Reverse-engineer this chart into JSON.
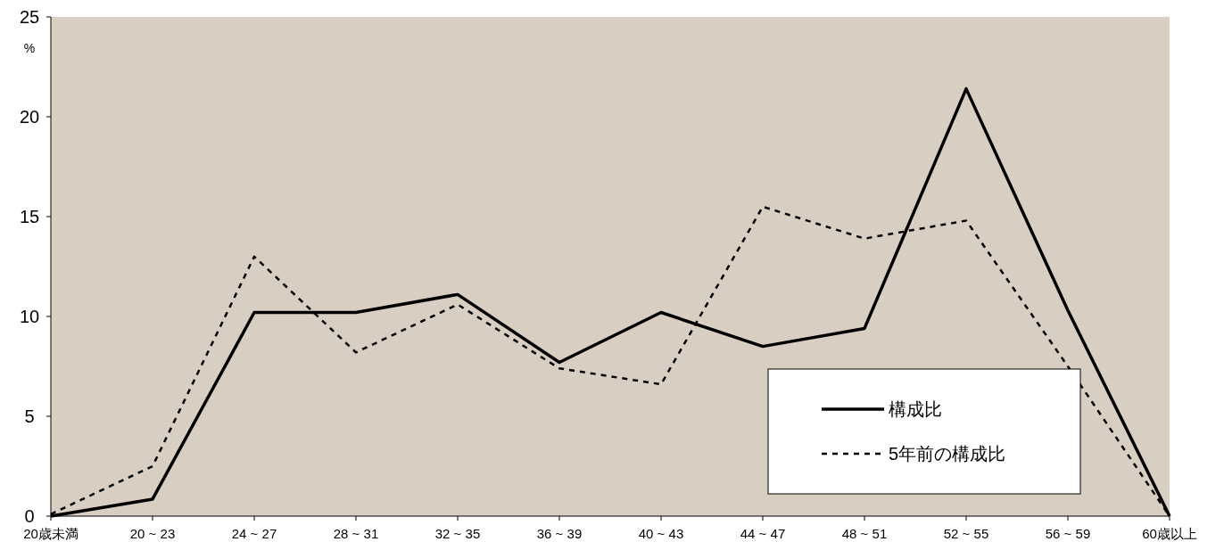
{
  "chart_data": {
    "type": "line",
    "ylabel": "%",
    "categories": [
      "20歳未満",
      "20 ~ 23",
      "24 ~ 27",
      "28 ~ 31",
      "32 ~ 35",
      "36 ~ 39",
      "40 ~ 43",
      "44 ~ 47",
      "48 ~ 51",
      "52 ~ 55",
      "56 ~ 59",
      "60歳以上"
    ],
    "series": [
      {
        "name": "構成比",
        "color": "#000000",
        "line_style": "solid",
        "values": [
          0,
          0.85,
          10.2,
          10.2,
          11.1,
          7.7,
          10.2,
          8.5,
          9.4,
          21.4,
          10.3,
          0
        ]
      },
      {
        "name": "5年前の構成比",
        "color": "#000000",
        "line_style": "dashed",
        "values": [
          0.1,
          2.5,
          13.0,
          8.2,
          10.6,
          7.4,
          6.6,
          15.5,
          13.9,
          14.8,
          7.5,
          0
        ]
      }
    ],
    "ylim": [
      0,
      25
    ],
    "yticks": [
      0,
      5,
      10,
      15,
      20,
      25
    ],
    "grid": false,
    "legend": "bottom right",
    "marker": "none"
  }
}
